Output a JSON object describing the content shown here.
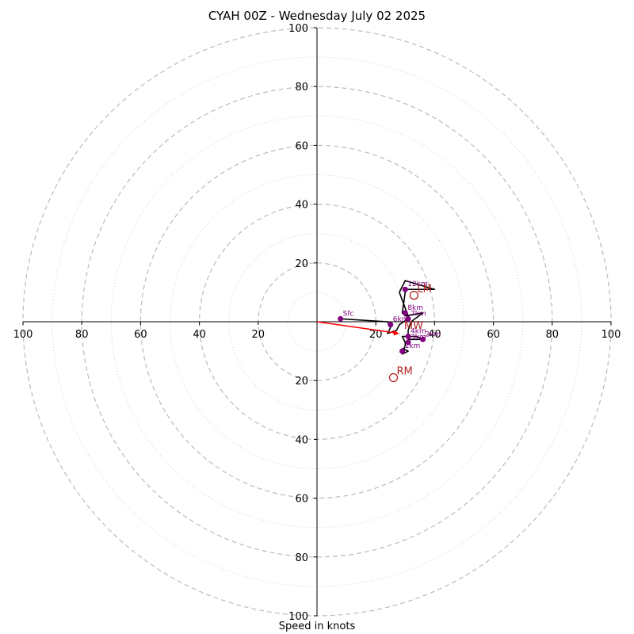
{
  "chart_data": {
    "type": "hodograph",
    "title": "CYAH 00Z - Wednesday July 02 2025",
    "xlabel": "Speed in knots",
    "rings": [
      20,
      40,
      60,
      80,
      100
    ],
    "minor_rings": [
      10,
      30,
      50,
      70,
      90
    ],
    "tick_labels": [
      "20",
      "40",
      "60",
      "80",
      "100"
    ],
    "grid": true,
    "hodograph": [
      [
        8,
        1
      ],
      [
        24,
        0
      ],
      [
        25,
        -2
      ],
      [
        24,
        -4
      ],
      [
        27,
        -3
      ],
      [
        28,
        -1
      ],
      [
        31,
        1
      ],
      [
        31,
        2
      ],
      [
        28,
        10
      ],
      [
        30,
        14
      ],
      [
        40,
        11
      ],
      [
        32,
        11
      ],
      [
        30,
        11
      ],
      [
        30,
        10
      ],
      [
        29,
        3
      ],
      [
        30,
        2
      ],
      [
        36,
        3
      ],
      [
        32,
        0
      ],
      [
        31,
        -3
      ],
      [
        31,
        -5
      ],
      [
        34,
        -5
      ],
      [
        36,
        -6
      ],
      [
        31,
        -6
      ],
      [
        31,
        -5
      ],
      [
        29,
        -5
      ],
      [
        30,
        -7
      ],
      [
        30,
        -8
      ],
      [
        29,
        -11
      ],
      [
        31,
        -10
      ],
      [
        29,
        -9
      ]
    ],
    "levels": [
      {
        "label": "Sfc",
        "u": 8,
        "v": 1
      },
      {
        "label": "6km",
        "u": 25,
        "v": -1
      },
      {
        "label": "8km",
        "u": 30,
        "v": 3
      },
      {
        "label": "7km",
        "u": 31,
        "v": 1
      },
      {
        "label": "12km",
        "u": 30,
        "v": 11
      },
      {
        "label": "4km",
        "u": 31,
        "v": -5
      },
      {
        "label": "3km",
        "u": 31,
        "v": -7
      },
      {
        "label": "2km",
        "u": 36,
        "v": -6
      },
      {
        "label": "1km",
        "u": 29,
        "v": -10
      }
    ],
    "storm_motion": [
      {
        "label": "LM",
        "u": 33,
        "v": 9
      },
      {
        "label": "RM",
        "u": 26,
        "v": -19
      }
    ],
    "mean_wind_label": "MW",
    "mean_wind": {
      "u": 28,
      "v": -4
    }
  }
}
